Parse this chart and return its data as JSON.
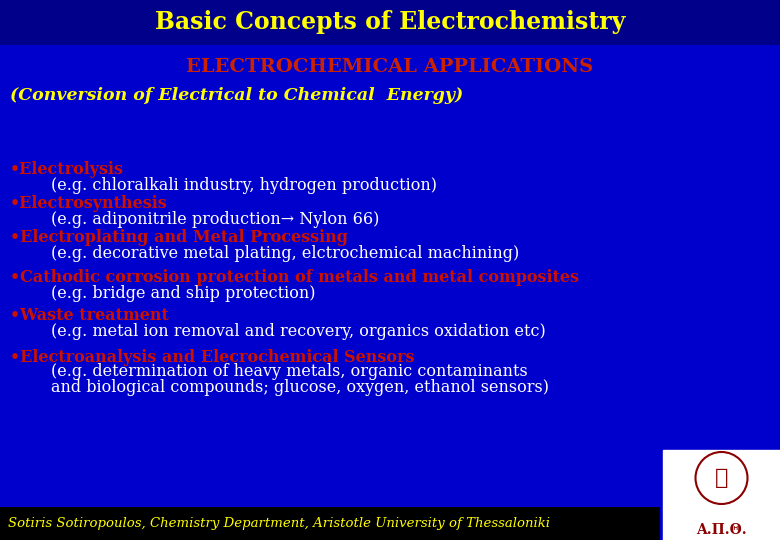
{
  "bg_color": "#0000CC",
  "title_bar_color": "#00008B",
  "title_text": "Basic Concepts of Electrochemistry",
  "title_color": "#FFFF00",
  "subtitle_text": "ELECTROCHEMICAL APPLICATIONS",
  "subtitle_color": "#CC2200",
  "section_header": "(Conversion of Electrical to Chemical  Energy)",
  "section_header_color": "#FFFF00",
  "bullet_color": "#CC1100",
  "white_color": "#FFFFFF",
  "footer_bar_color": "#000000",
  "footer_text": "Sotiris Sotiropoulos, Chemistry Department, Aristotle University of Thessaloniki",
  "footer_color": "#FFFF00",
  "logo_text": "Α.Π.Θ.",
  "items": [
    {
      "bullet": "•Electrolysis",
      "detail": "        (e.g. chloralkali industry, hydrogen production)"
    },
    {
      "bullet": "•Electrosynthesis",
      "detail": "        (e.g. adiponitrile production→ Nylon 66)"
    },
    {
      "bullet": "•Electroplating and Metal Processing",
      "detail": "        (e.g. decorative metal plating, elctrochemical machining)"
    },
    {
      "bullet": "•Cathodic corrosion protection of metals and metal composites",
      "detail": "        (e.g. bridge and ship protection)"
    },
    {
      "bullet": "•Waste treatment",
      "detail": "        (e.g. metal ion removal and recovery, organics oxidation etc)"
    },
    {
      "bullet": "•Electroanalysis and Elecrochemical Sensors",
      "detail": "        (e.g. determination of heavy metals, organic contaminants\n        and biological compounds; glucose, oxygen, ethanol sensors)"
    }
  ]
}
